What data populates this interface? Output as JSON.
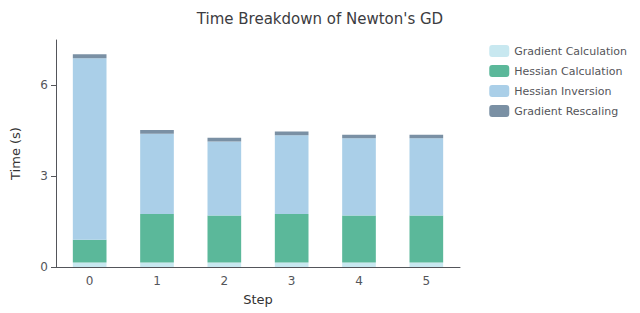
{
  "chart_data": {
    "type": "bar",
    "stacked": true,
    "title": "Time Breakdown of Newton's GD",
    "xlabel": "Step",
    "ylabel": "Time (s)",
    "categories": [
      0,
      1,
      2,
      3,
      4,
      5
    ],
    "series": [
      {
        "name": "Gradient Calculation",
        "color": "#c8e8f0",
        "values": [
          0.15,
          0.15,
          0.15,
          0.15,
          0.15,
          0.15
        ]
      },
      {
        "name": "Hessian Calculation",
        "color": "#5bb89a",
        "values": [
          0.75,
          1.6,
          1.55,
          1.6,
          1.55,
          1.55
        ]
      },
      {
        "name": "Hessian Inversion",
        "color": "#aacfe8",
        "values": [
          6.0,
          2.65,
          2.45,
          2.6,
          2.55,
          2.55
        ]
      },
      {
        "name": "Gradient Rescaling",
        "color": "#7a90a4",
        "values": [
          0.13,
          0.13,
          0.12,
          0.13,
          0.12,
          0.12
        ]
      }
    ],
    "ylim": [
      0,
      7.5
    ],
    "yticks": [
      0,
      3,
      6
    ],
    "grid": false,
    "legend": "upper right"
  }
}
